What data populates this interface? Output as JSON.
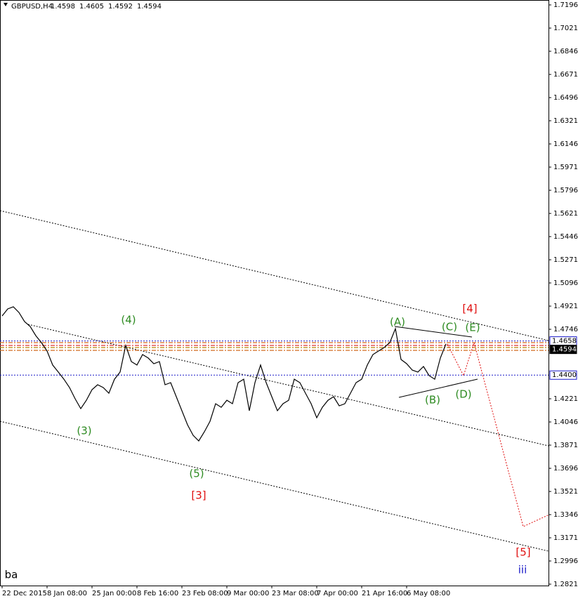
{
  "chart_data": {
    "type": "line",
    "symbol": "GBPUSD,H4",
    "ohlc": [
      1.4598,
      1.4605,
      1.4592,
      1.4594
    ],
    "ylim": [
      1.2821,
      1.7196
    ],
    "yticks": [
      1.7196,
      1.7021,
      1.6846,
      1.6671,
      1.6496,
      1.6321,
      1.6146,
      1.5971,
      1.5796,
      1.5621,
      1.5446,
      1.5271,
      1.5096,
      1.4921,
      1.4746,
      1.4221,
      1.4046,
      1.3871,
      1.3696,
      1.3521,
      1.3346,
      1.3171,
      1.2996,
      1.2821
    ],
    "categories": [
      "22 Dec 2015",
      null,
      null,
      null,
      null,
      null,
      null,
      null,
      "8 Jan 08:00",
      null,
      null,
      null,
      null,
      null,
      null,
      null,
      "25 Jan 00:00",
      null,
      null,
      null,
      null,
      null,
      null,
      null,
      "8 Feb 16:00",
      null,
      null,
      null,
      null,
      null,
      null,
      null,
      "23 Feb 08:00",
      null,
      null,
      null,
      null,
      null,
      null,
      null,
      "9 Mar 00:00",
      null,
      null,
      null,
      null,
      null,
      null,
      null,
      "23 Mar 08:00",
      null,
      null,
      null,
      null,
      null,
      null,
      null,
      "7 Apr 00:00",
      null,
      null,
      null,
      null,
      null,
      null,
      null,
      "21 Apr 16:00",
      null,
      null,
      null,
      null,
      null,
      null,
      null,
      "6 May 08:00",
      null,
      null,
      null,
      null,
      null,
      null,
      null
    ],
    "series": [
      {
        "name": "GBPUSD,H4",
        "color": "#000000",
        "values": [
          1.4847,
          1.49,
          1.4916,
          1.4873,
          1.4804,
          1.4767,
          1.4698,
          1.4645,
          1.4582,
          1.4476,
          1.4423,
          1.4369,
          1.4306,
          1.4221,
          1.4147,
          1.421,
          1.429,
          1.4327,
          1.4306,
          1.4263,
          1.4369,
          1.4423,
          1.4624,
          1.4502,
          1.4476,
          1.4555,
          1.4529,
          1.4486,
          1.4502,
          1.4327,
          1.4343,
          1.4237,
          1.4131,
          1.4025,
          1.3945,
          1.3903,
          1.3972,
          1.4051,
          1.4184,
          1.4157,
          1.421,
          1.4184,
          1.4343,
          1.4369,
          1.4131,
          1.4343,
          1.4476,
          1.4343,
          1.4237,
          1.4131,
          1.4184,
          1.421,
          1.4369,
          1.4343,
          1.4263,
          1.4184,
          1.4078,
          1.4157,
          1.421,
          1.4237,
          1.4168,
          1.4184,
          1.4263,
          1.4343,
          1.4369,
          1.4476,
          1.4555,
          1.4582,
          1.4608,
          1.4645,
          1.4751,
          1.4518,
          1.4486,
          1.4438,
          1.4423,
          1.4465,
          1.4396,
          1.4369,
          1.4529,
          1.4635
        ]
      }
    ],
    "price_lines": [
      1.4658,
      1.4594,
      {
        "value": 1.44,
        "label": "1.4400"
      }
    ],
    "annotations": [
      {
        "text": "(4)",
        "color": "#2e8b22"
      },
      {
        "text": "(3)",
        "color": "#2e8b22"
      },
      {
        "text": "(5)",
        "color": "#2e8b22"
      },
      {
        "text": "[3]",
        "color": "#e01010"
      },
      {
        "text": "(A)",
        "color": "#2e8b22"
      },
      {
        "text": "(B)",
        "color": "#2e8b22"
      },
      {
        "text": "(C)",
        "color": "#2e8b22"
      },
      {
        "text": "(D)",
        "color": "#2e8b22"
      },
      {
        "text": "(E)",
        "color": "#2e8b22"
      },
      {
        "text": "[4]",
        "color": "#e01010"
      },
      {
        "text": "[5]",
        "color": "#e01010"
      },
      {
        "text": "iii",
        "color": "#1a1ac8"
      },
      {
        "text": "ba",
        "color": "#000000"
      }
    ]
  }
}
